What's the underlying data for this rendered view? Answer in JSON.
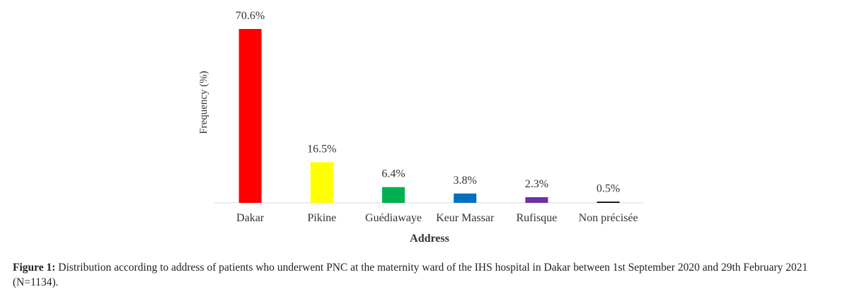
{
  "chart_data": {
    "type": "bar",
    "categories": [
      "Dakar",
      "Pikine",
      "Guédiawaye",
      "Keur Massar",
      "Rufisque",
      "Non précisée"
    ],
    "values": [
      70.6,
      16.5,
      6.4,
      3.8,
      2.3,
      0.5
    ],
    "value_labels": [
      "70.6%",
      "16.5%",
      "6.4%",
      "3.8%",
      "2.3%",
      "0.5%"
    ],
    "colors": [
      "#ff0000",
      "#ffff00",
      "#00b050",
      "#0070c0",
      "#7030a0",
      "#000000"
    ],
    "xlabel": "Address",
    "ylabel": "Frequency (%)"
  },
  "caption": {
    "label": "Figure 1:",
    "text": "Distribution according to address of patients who underwent PNC at the maternity ward of the IHS hospital in Dakar between 1st September 2020 and 29th February 2021 (N=1134)."
  }
}
